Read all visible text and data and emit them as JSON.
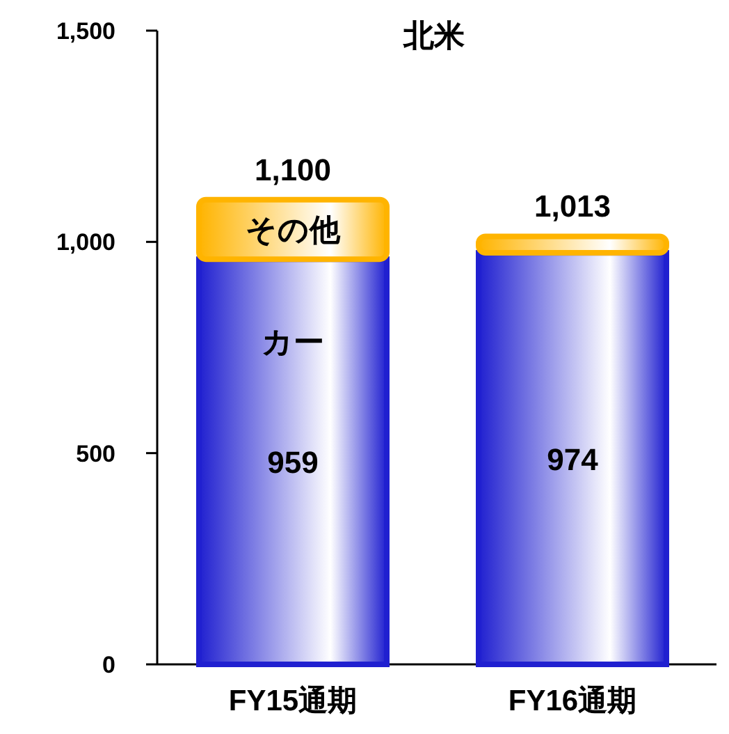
{
  "chart_data": {
    "type": "bar",
    "stacked": true,
    "title": "北米",
    "categories": [
      "FY15通期",
      "FY16通期"
    ],
    "series": [
      {
        "name": "カー",
        "color": "#2020d0",
        "values": [
          959,
          974
        ],
        "value_labels": [
          "959",
          "974"
        ]
      },
      {
        "name": "その他",
        "color": "#ffb400",
        "values": [
          141,
          39
        ]
      }
    ],
    "totals": [
      "1,100",
      "1,013"
    ],
    "ylim": [
      0,
      1500
    ],
    "yticks": [
      {
        "value": 0,
        "label": "0"
      },
      {
        "value": 500,
        "label": "500"
      },
      {
        "value": 1000,
        "label": "1,000"
      },
      {
        "value": 1500,
        "label": "1,500"
      }
    ],
    "grid": false,
    "legend": false
  }
}
